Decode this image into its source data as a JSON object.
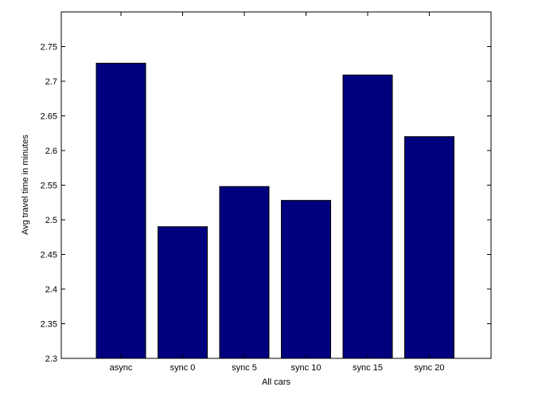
{
  "chart_data": {
    "type": "bar",
    "title": "",
    "xlabel": "All cars",
    "ylabel": "Avg travel time in minutes",
    "categories": [
      "async",
      "sync 0",
      "sync 5",
      "sync 10",
      "sync 15",
      "sync 20"
    ],
    "values": [
      2.726,
      2.49,
      2.548,
      2.528,
      2.709,
      2.62
    ],
    "ylim": [
      2.3,
      2.8
    ],
    "yticks": [
      "2.3",
      "2.35",
      "2.4",
      "2.45",
      "2.5",
      "2.55",
      "2.6",
      "2.65",
      "2.7",
      "2.75"
    ],
    "grid": false,
    "legend": "none",
    "bar_color": "#00007f",
    "bar_edge_color": "#000000"
  }
}
